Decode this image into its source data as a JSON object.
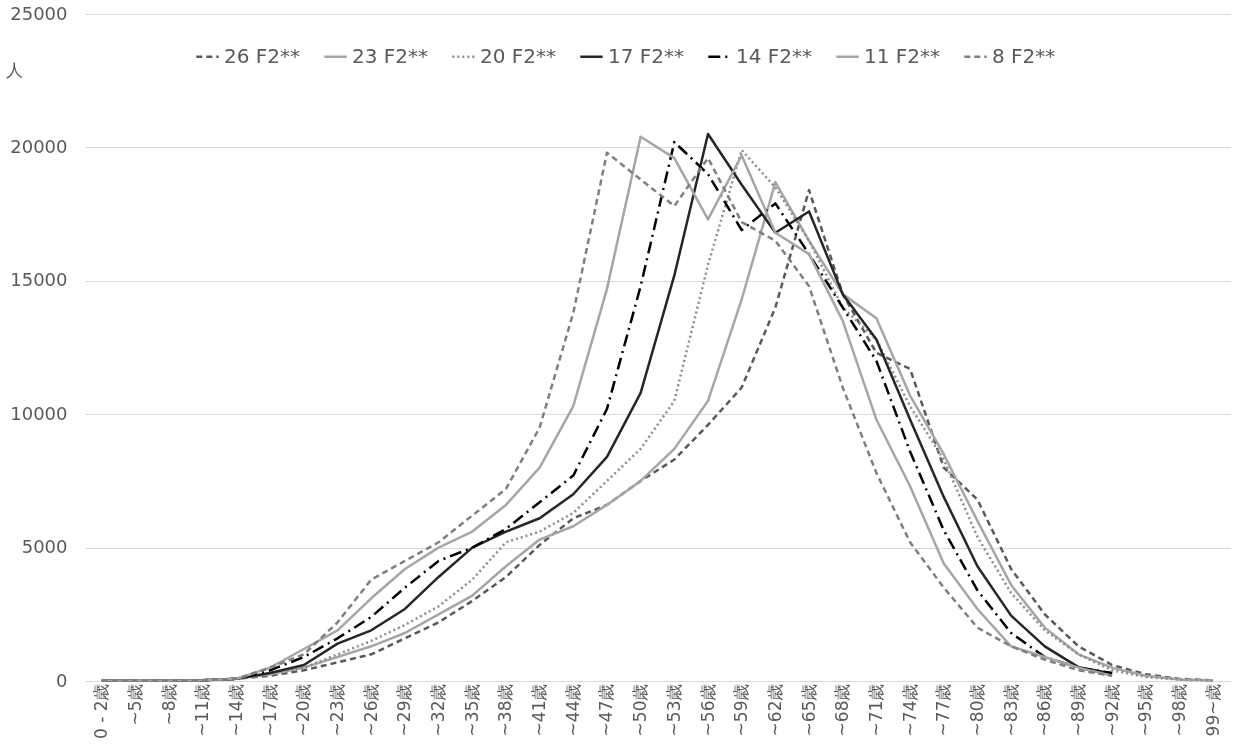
{
  "chart_data": {
    "type": "line",
    "ylabel": "人",
    "categories": [
      "0 - 2歳",
      "~5歳",
      "~8歳",
      "~11歳",
      "~14歳",
      "~17歳",
      "~20歳",
      "~23歳",
      "~26歳",
      "~29歳",
      "~32歳",
      "~35歳",
      "~38歳",
      "~41歳",
      "~44歳",
      "~47歳",
      "~50歳",
      "~53歳",
      "~56歳",
      "~59歳",
      "~62歳",
      "~65歳",
      "~68歳",
      "~71歳",
      "~74歳",
      "~77歳",
      "~80歳",
      "~83歳",
      "~86歳",
      "~89歳",
      "~92歳",
      "~95歳",
      "~98歳",
      "99~歳"
    ],
    "series": [
      {
        "name": "26 F2**",
        "color": "#595959",
        "line_style": "dashed",
        "values": [
          20,
          20,
          20,
          30,
          80,
          200,
          400,
          700,
          1000,
          1600,
          2200,
          3000,
          3900,
          5100,
          6100,
          6600,
          7500,
          8300,
          9600,
          11000,
          14000,
          18400,
          14500,
          12300,
          11700,
          8000,
          6800,
          4200,
          2500,
          1300,
          600,
          250,
          80,
          20
        ]
      },
      {
        "name": "23 F2**",
        "color": "#a6a6a6",
        "line_style": "solid",
        "values": [
          20,
          20,
          20,
          30,
          80,
          250,
          500,
          900,
          1300,
          1800,
          2500,
          3200,
          4300,
          5300,
          5800,
          6600,
          7500,
          8700,
          10500,
          14300,
          18700,
          16500,
          14500,
          13600,
          10700,
          8500,
          6000,
          3600,
          2000,
          1000,
          500,
          200,
          60,
          20
        ]
      },
      {
        "name": "20 F2**",
        "color": "#8c8c8c",
        "line_style": "dotted",
        "values": [
          20,
          20,
          20,
          30,
          80,
          300,
          500,
          1000,
          1500,
          2100,
          2800,
          3800,
          5200,
          5600,
          6300,
          7500,
          8700,
          10500,
          15600,
          19900,
          18500,
          16500,
          14000,
          12800,
          10300,
          8300,
          5400,
          3300,
          1900,
          1000,
          400,
          150,
          50,
          20
        ]
      },
      {
        "name": "17 F2**",
        "color": "#262626",
        "line_style": "solid",
        "values": [
          20,
          20,
          20,
          30,
          80,
          300,
          600,
          1400,
          1900,
          2700,
          3900,
          5000,
          5600,
          6100,
          7000,
          8400,
          10800,
          15200,
          20500,
          18600,
          16800,
          17600,
          14500,
          12800,
          9800,
          6900,
          4300,
          2450,
          1300,
          520,
          280,
          null,
          null,
          null
        ]
      },
      {
        "name": "14 F2**",
        "color": "#000000",
        "line_style": "dashdot",
        "values": [
          20,
          20,
          20,
          30,
          80,
          400,
          900,
          1600,
          2400,
          3500,
          4500,
          5000,
          5700,
          6700,
          7700,
          10200,
          14800,
          20200,
          19000,
          16900,
          17900,
          16000,
          14000,
          12000,
          8600,
          5650,
          3400,
          1800,
          900,
          500,
          300,
          null,
          null,
          null
        ]
      },
      {
        "name": "11 F2**",
        "color": "#a6a6a6",
        "line_style": "solid",
        "values": [
          20,
          20,
          20,
          30,
          80,
          500,
          1200,
          1900,
          3100,
          4200,
          5000,
          5600,
          6600,
          8000,
          10300,
          14700,
          20400,
          19600,
          17300,
          19700,
          16800,
          16000,
          13500,
          9800,
          7300,
          4400,
          2700,
          1300,
          900,
          500,
          200,
          null,
          null,
          null
        ]
      },
      {
        "name": "8 F2**",
        "color": "#7f7f7f",
        "line_style": "dashed",
        "values": [
          20,
          20,
          20,
          30,
          80,
          500,
          1000,
          2200,
          3800,
          4500,
          5200,
          6200,
          7200,
          9500,
          13800,
          19800,
          18800,
          17800,
          19600,
          17200,
          16500,
          14800,
          11000,
          7800,
          5200,
          3500,
          2000,
          1300,
          800,
          400,
          200,
          null,
          null,
          null
        ]
      }
    ],
    "ylim": [
      0,
      25000
    ],
    "yticks": [
      0,
      5000,
      10000,
      15000,
      20000,
      25000
    ],
    "grid": "y",
    "legend": "top"
  }
}
